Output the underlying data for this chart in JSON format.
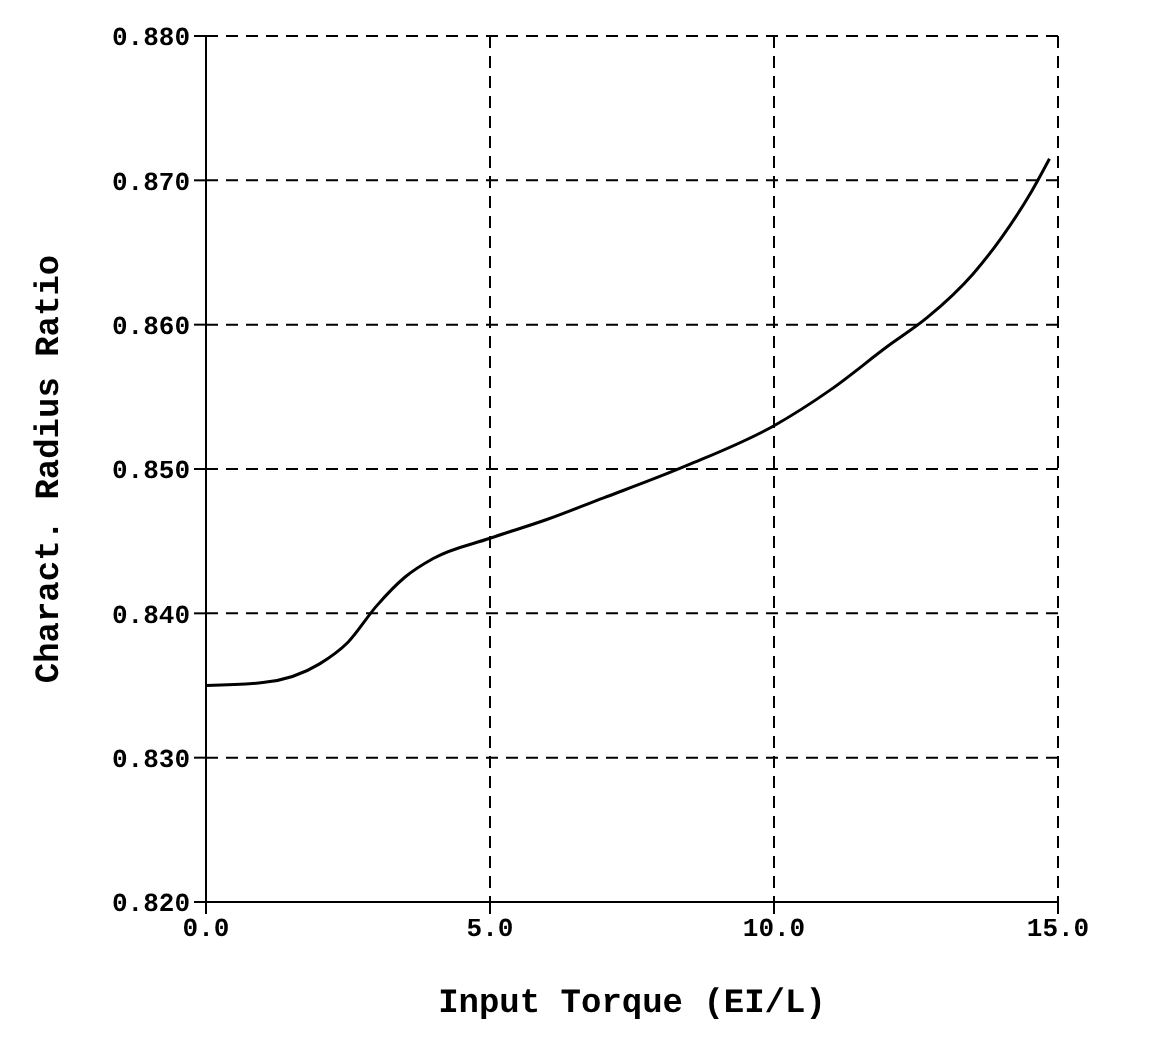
{
  "chart_data": {
    "type": "line",
    "xlabel": "Input Torque (EI/L)",
    "ylabel": "Charact. Radius Ratio",
    "x": [
      0,
      1,
      2,
      2.5,
      3,
      3.5,
      4,
      5,
      6,
      7,
      8,
      8.5,
      10,
      11,
      12,
      12.7,
      13.5,
      14,
      14.5,
      14.85
    ],
    "series": [
      {
        "color": "#000000",
        "values": [
          0.835,
          0.8352,
          0.8365,
          0.838,
          0.8405,
          0.8425,
          0.8438,
          0.8452,
          0.8465,
          0.848,
          0.8495,
          0.8503,
          0.853,
          0.8555,
          0.8585,
          0.8605,
          0.8635,
          0.866,
          0.869,
          0.8715
        ]
      }
    ],
    "xlim": [
      0,
      15
    ],
    "xticks": [
      {
        "value": 0,
        "label": "0.0"
      },
      {
        "value": 5,
        "label": "5.0"
      },
      {
        "value": 10,
        "label": "10.0"
      },
      {
        "value": 15,
        "label": "15.0"
      }
    ],
    "ylim": [
      0.82,
      0.88
    ],
    "yticks": [
      {
        "value": 0.82,
        "label": "0.820"
      },
      {
        "value": 0.83,
        "label": "0.830"
      },
      {
        "value": 0.84,
        "label": "0.840"
      },
      {
        "value": 0.85,
        "label": "0.850"
      },
      {
        "value": 0.86,
        "label": "0.860"
      },
      {
        "value": 0.87,
        "label": "0.870"
      },
      {
        "value": 0.88,
        "label": "0.880"
      }
    ],
    "grid": true,
    "marker": "none",
    "line_style": "solid",
    "legend": false
  }
}
